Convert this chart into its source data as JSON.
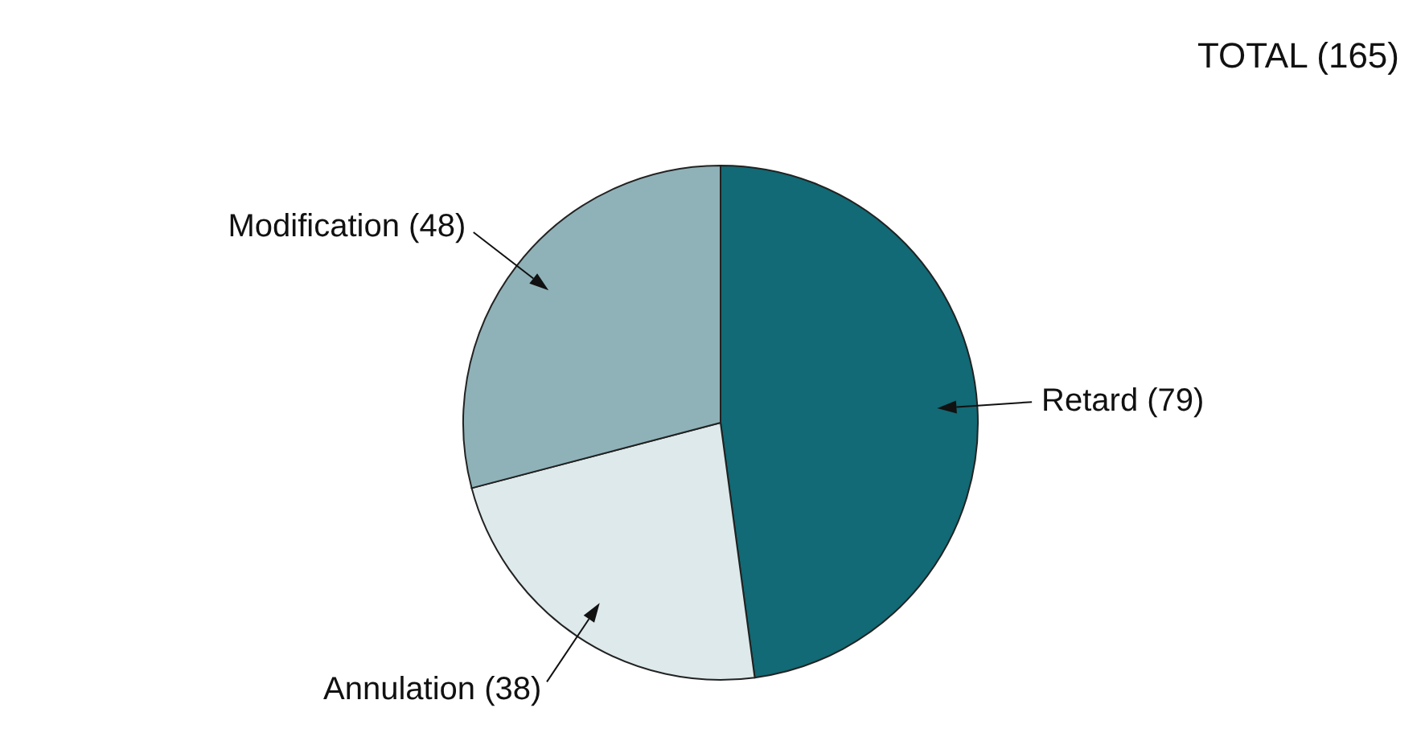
{
  "chart_data": {
    "type": "pie",
    "title": "TOTAL (165)",
    "categories": [
      "Retard (79)",
      "Annulation (38)",
      "Modification (48)"
    ],
    "values": [
      79,
      38,
      48
    ],
    "colors": [
      "#116a75",
      "#dde9ea",
      "#8fb2b8"
    ]
  }
}
